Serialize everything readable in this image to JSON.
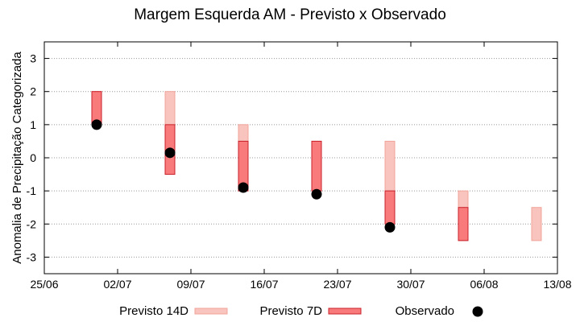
{
  "chart_data": {
    "type": "range-bar",
    "title": "Margem Esquerda AM - Previsto x Observado",
    "xlabel": "",
    "ylabel": "Anomalia de Precipitação Categorizada",
    "ylim": [
      -3.5,
      3.5
    ],
    "y_ticks": [
      -3,
      -2,
      -1,
      0,
      1,
      2,
      3
    ],
    "x_tick_labels": [
      "25/06",
      "02/07",
      "09/07",
      "16/07",
      "23/07",
      "30/07",
      "06/08",
      "13/08"
    ],
    "grid": true,
    "legend_position": "bottom",
    "colors": {
      "previsto_14d_fill": "#f9c4bd",
      "previsto_14d_stroke": "#f0a49a",
      "previsto_7d_fill": "#f87a7a",
      "previsto_7d_stroke": "#c8202a",
      "observado": "#000000",
      "grid": "#999999"
    },
    "series": [
      {
        "name": "Previsto 14D",
        "type": "range",
        "points": [
          {
            "x": "30/06",
            "low": 1,
            "high": 2
          },
          {
            "x": "07/07",
            "low": -0.5,
            "high": 2
          },
          {
            "x": "14/07",
            "low": -1,
            "high": 1
          },
          {
            "x": "21/07",
            "low": -1,
            "high": 0.5
          },
          {
            "x": "28/07",
            "low": -1,
            "high": 0.5
          },
          {
            "x": "04/08",
            "low": -2.5,
            "high": -1
          },
          {
            "x": "11/08",
            "low": -2.5,
            "high": -1.5
          }
        ]
      },
      {
        "name": "Previsto 7D",
        "type": "range",
        "points": [
          {
            "x": "30/06",
            "low": 1,
            "high": 2
          },
          {
            "x": "07/07",
            "low": -0.5,
            "high": 1
          },
          {
            "x": "14/07",
            "low": -1,
            "high": 0.5
          },
          {
            "x": "21/07",
            "low": -1,
            "high": 0.5
          },
          {
            "x": "28/07",
            "low": -2,
            "high": -1
          },
          {
            "x": "04/08",
            "low": -2.5,
            "high": -1.5
          }
        ]
      },
      {
        "name": "Observado",
        "type": "scatter",
        "points": [
          {
            "x": "30/06",
            "y": 1.0
          },
          {
            "x": "07/07",
            "y": 0.15
          },
          {
            "x": "14/07",
            "y": -0.9
          },
          {
            "x": "21/07",
            "y": -1.1
          },
          {
            "x": "28/07",
            "y": -2.1
          }
        ]
      }
    ]
  }
}
